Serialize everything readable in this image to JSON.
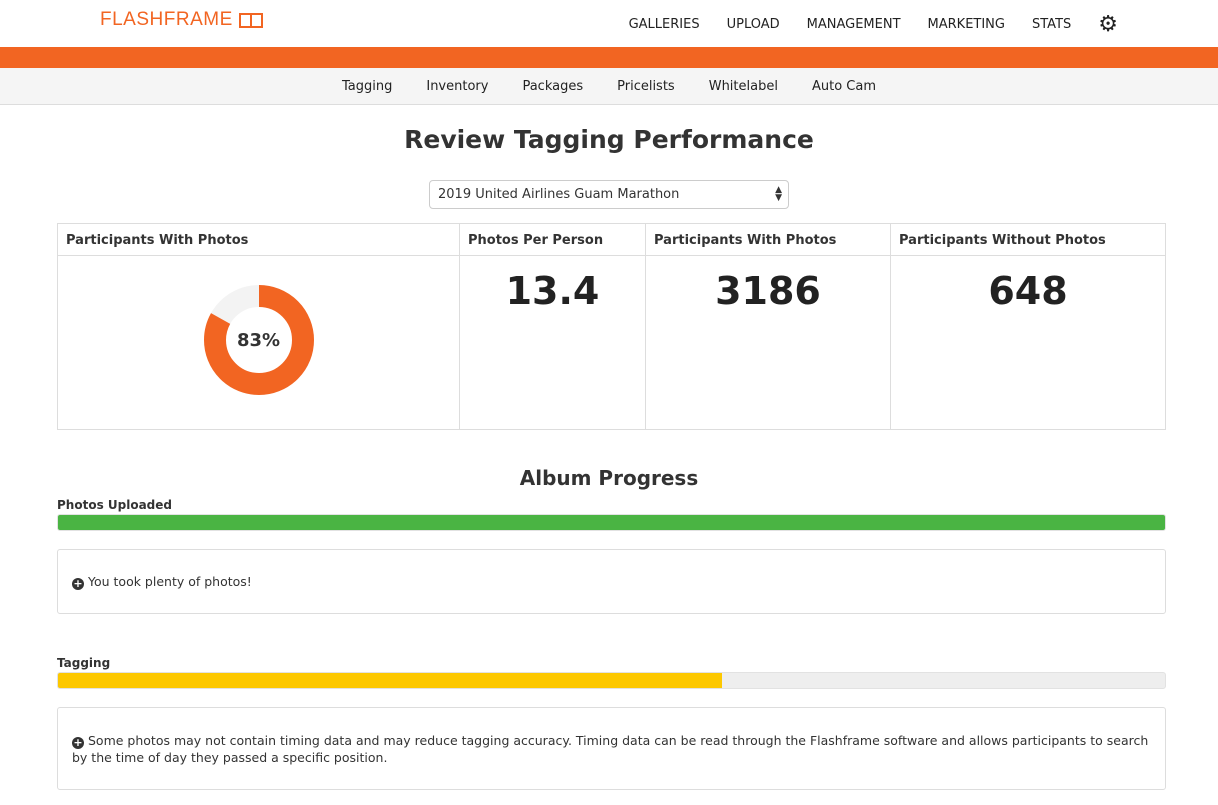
{
  "brand": "FLASHFRAME",
  "nav": [
    "GALLERIES",
    "UPLOAD",
    "MANAGEMENT",
    "MARKETING",
    "STATS"
  ],
  "subnav": [
    "Tagging",
    "Inventory",
    "Packages",
    "Pricelists",
    "Whitelabel",
    "Auto Cam"
  ],
  "title": "Review Tagging Performance",
  "event_select": "2019 United Airlines Guam Marathon",
  "stats": {
    "donut": {
      "label": "Participants With Photos",
      "value_text": "83%",
      "percent": 83
    },
    "photos_per_person": {
      "label": "Photos Per Person",
      "value": "13.4"
    },
    "with_photos": {
      "label": "Participants With Photos",
      "value": "3186"
    },
    "without_photos": {
      "label": "Participants Without Photos",
      "value": "648"
    }
  },
  "progress_title": "Album Progress",
  "uploaded": {
    "label": "Photos Uploaded",
    "percent": 100,
    "message": "You took plenty of photos!"
  },
  "tagging": {
    "label": "Tagging",
    "percent": 60,
    "message": "Some photos may not contain timing data and may reduce tagging accuracy. Timing data can be read through the Flashframe software and allows participants to search by the time of day they passed a specific position."
  },
  "colors": {
    "brand": "#f26522",
    "green": "#4ab443",
    "yellow": "#fdc800"
  }
}
